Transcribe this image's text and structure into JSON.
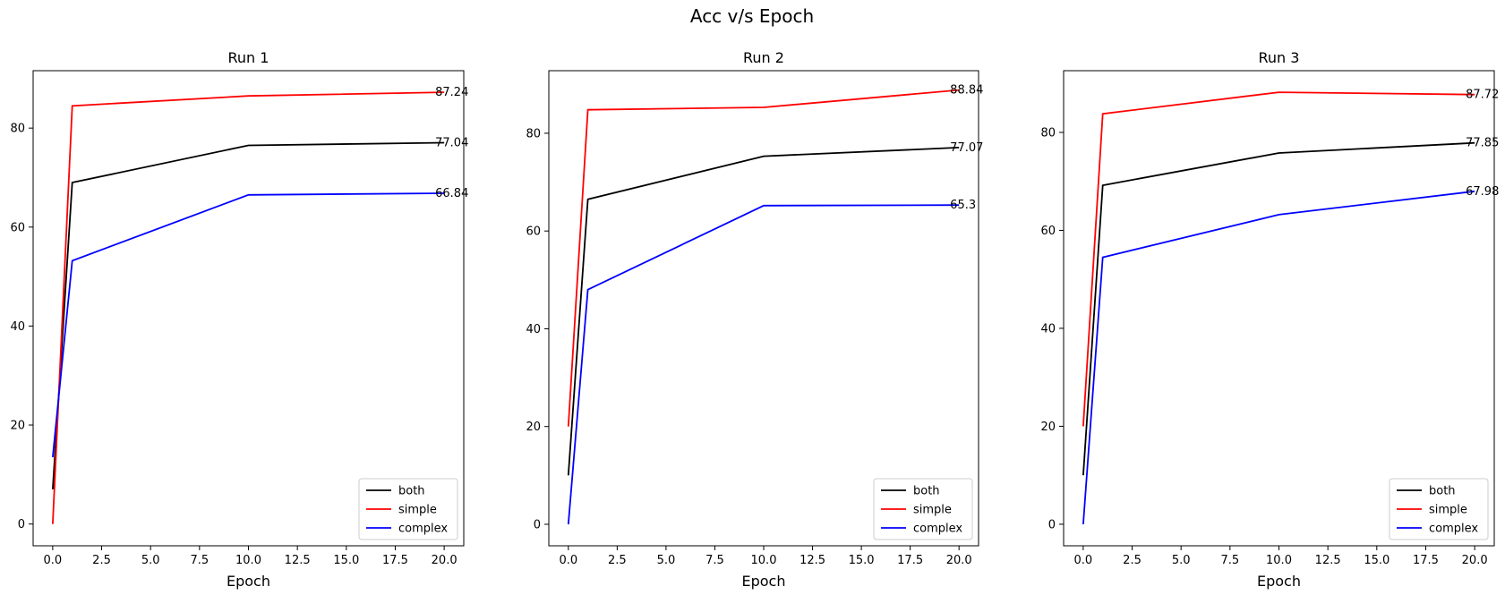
{
  "figure": {
    "title": "Acc v/s Epoch"
  },
  "chart_data": [
    {
      "type": "line",
      "title": "Run 1",
      "xlabel": "Epoch",
      "ylabel": "",
      "xlim": [
        -1,
        21
      ],
      "ylim": [
        -4.4,
        91.6
      ],
      "xticks": [
        0,
        2.5,
        5,
        7.5,
        10,
        12.5,
        15,
        17.5,
        20
      ],
      "xtick_labels": [
        "0.0",
        "2.5",
        "5.0",
        "7.5",
        "10.0",
        "12.5",
        "15.0",
        "17.5",
        "20.0"
      ],
      "yticks": [
        0,
        20,
        40,
        60,
        80
      ],
      "ytick_labels": [
        "0",
        "20",
        "40",
        "60",
        "80"
      ],
      "x": [
        0,
        1,
        10,
        20
      ],
      "legend_position": "lower-right",
      "grid": false,
      "series": [
        {
          "name": "both",
          "color": "#000000",
          "values": [
            7,
            69,
            76.5,
            77.04
          ],
          "end_label": "77.04"
        },
        {
          "name": "simple",
          "color": "#ff0000",
          "values": [
            0,
            84.5,
            86.5,
            87.24
          ],
          "end_label": "87.24"
        },
        {
          "name": "complex",
          "color": "#0000ff",
          "values": [
            13.5,
            53.2,
            66.5,
            66.84
          ],
          "end_label": "66.84"
        }
      ]
    },
    {
      "type": "line",
      "title": "Run 2",
      "xlabel": "Epoch",
      "ylabel": "",
      "xlim": [
        -1,
        21
      ],
      "ylim": [
        -4.4,
        92.8
      ],
      "xticks": [
        0,
        2.5,
        5,
        7.5,
        10,
        12.5,
        15,
        17.5,
        20
      ],
      "xtick_labels": [
        "0.0",
        "2.5",
        "5.0",
        "7.5",
        "10.0",
        "12.5",
        "15.0",
        "17.5",
        "20.0"
      ],
      "yticks": [
        0,
        20,
        40,
        60,
        80
      ],
      "ytick_labels": [
        "0",
        "20",
        "40",
        "60",
        "80"
      ],
      "x": [
        0,
        1,
        10,
        20
      ],
      "legend_position": "lower-right",
      "grid": false,
      "series": [
        {
          "name": "both",
          "color": "#000000",
          "values": [
            10,
            66.5,
            75.3,
            77.07
          ],
          "end_label": "77.07"
        },
        {
          "name": "simple",
          "color": "#ff0000",
          "values": [
            20,
            84.8,
            85.3,
            88.84
          ],
          "end_label": "88.84"
        },
        {
          "name": "complex",
          "color": "#0000ff",
          "values": [
            0,
            48,
            65.2,
            65.3
          ],
          "end_label": "65.3"
        }
      ]
    },
    {
      "type": "line",
      "title": "Run 3",
      "xlabel": "Epoch",
      "ylabel": "",
      "xlim": [
        -1,
        21
      ],
      "ylim": [
        -4.4,
        92.6
      ],
      "xticks": [
        0,
        2.5,
        5,
        7.5,
        10,
        12.5,
        15,
        17.5,
        20
      ],
      "xtick_labels": [
        "0.0",
        "2.5",
        "5.0",
        "7.5",
        "10.0",
        "12.5",
        "15.0",
        "17.5",
        "20.0"
      ],
      "yticks": [
        0,
        20,
        40,
        60,
        80
      ],
      "ytick_labels": [
        "0",
        "20",
        "40",
        "60",
        "80"
      ],
      "x": [
        0,
        1,
        10,
        20
      ],
      "legend_position": "lower-right",
      "grid": false,
      "series": [
        {
          "name": "both",
          "color": "#000000",
          "values": [
            10,
            69.2,
            75.8,
            77.85
          ],
          "end_label": "77.85"
        },
        {
          "name": "simple",
          "color": "#ff0000",
          "values": [
            20,
            83.8,
            88.2,
            87.72
          ],
          "end_label": "87.72"
        },
        {
          "name": "complex",
          "color": "#0000ff",
          "values": [
            0,
            54.5,
            63.2,
            67.98
          ],
          "end_label": "67.98"
        }
      ]
    }
  ]
}
